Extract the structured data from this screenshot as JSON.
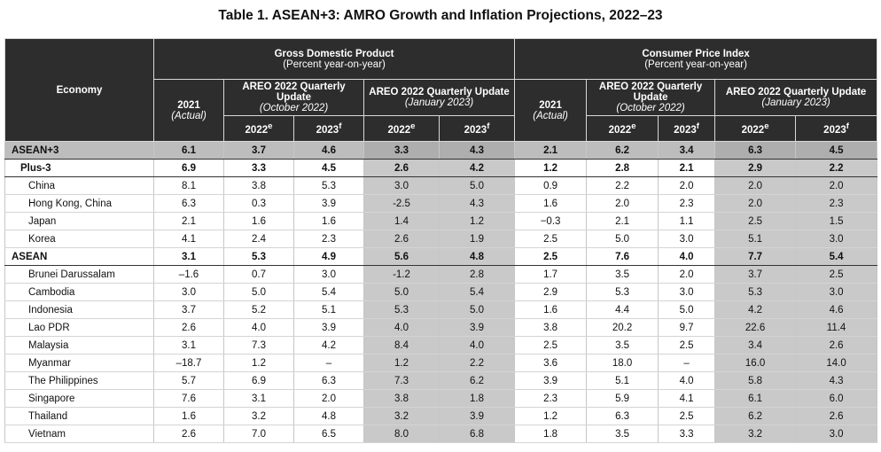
{
  "title": "Table 1. ASEAN+3: AMRO Growth and Inflation Projections, 2022–23",
  "header": {
    "economy": "Economy",
    "gdp": {
      "title": "Gross Domestic Product",
      "unit": "(Percent year-on-year)"
    },
    "cpi": {
      "title": "Consumer Price Index",
      "unit": "(Percent year-on-year)"
    },
    "actual_year": "2021",
    "actual_label": "(Actual)",
    "oct_update_title": "AREO 2022 Quarterly Update",
    "oct_update_date": "(October 2022)",
    "jan_update_title": "AREO 2022 Quarterly Update",
    "jan_update_date": "(January 2023)",
    "y2022": "2022",
    "y2022_sup": "e",
    "y2023": "2023",
    "y2023_sup": "f"
  },
  "rows": [
    {
      "economy": "ASEAN+3",
      "gdp_2021": "6.1",
      "gdp_oct_2022": "3.7",
      "gdp_oct_2023": "4.6",
      "gdp_jan_2022": "3.3",
      "gdp_jan_2023": "4.3",
      "cpi_2021": "2.1",
      "cpi_oct_2022": "6.2",
      "cpi_oct_2023": "3.4",
      "cpi_jan_2022": "6.3",
      "cpi_jan_2023": "4.5"
    },
    {
      "economy": "Plus-3",
      "gdp_2021": "6.9",
      "gdp_oct_2022": "3.3",
      "gdp_oct_2023": "4.5",
      "gdp_jan_2022": "2.6",
      "gdp_jan_2023": "4.2",
      "cpi_2021": "1.2",
      "cpi_oct_2022": "2.8",
      "cpi_oct_2023": "2.1",
      "cpi_jan_2022": "2.9",
      "cpi_jan_2023": "2.2"
    },
    {
      "economy": "China",
      "gdp_2021": "8.1",
      "gdp_oct_2022": "3.8",
      "gdp_oct_2023": "5.3",
      "gdp_jan_2022": "3.0",
      "gdp_jan_2023": "5.0",
      "cpi_2021": "0.9",
      "cpi_oct_2022": "2.2",
      "cpi_oct_2023": "2.0",
      "cpi_jan_2022": "2.0",
      "cpi_jan_2023": "2.0"
    },
    {
      "economy": "Hong Kong, China",
      "gdp_2021": "6.3",
      "gdp_oct_2022": "0.3",
      "gdp_oct_2023": "3.9",
      "gdp_jan_2022": "-2.5",
      "gdp_jan_2023": "4.3",
      "cpi_2021": "1.6",
      "cpi_oct_2022": "2.0",
      "cpi_oct_2023": "2.3",
      "cpi_jan_2022": "2.0",
      "cpi_jan_2023": "2.3"
    },
    {
      "economy": "Japan",
      "gdp_2021": "2.1",
      "gdp_oct_2022": "1.6",
      "gdp_oct_2023": "1.6",
      "gdp_jan_2022": "1.4",
      "gdp_jan_2023": "1.2",
      "cpi_2021": "−0.3",
      "cpi_oct_2022": "2.1",
      "cpi_oct_2023": "1.1",
      "cpi_jan_2022": "2.5",
      "cpi_jan_2023": "1.5"
    },
    {
      "economy": "Korea",
      "gdp_2021": "4.1",
      "gdp_oct_2022": "2.4",
      "gdp_oct_2023": "2.3",
      "gdp_jan_2022": "2.6",
      "gdp_jan_2023": "1.9",
      "cpi_2021": "2.5",
      "cpi_oct_2022": "5.0",
      "cpi_oct_2023": "3.0",
      "cpi_jan_2022": "5.1",
      "cpi_jan_2023": "3.0"
    },
    {
      "economy": "ASEAN",
      "gdp_2021": "3.1",
      "gdp_oct_2022": "5.3",
      "gdp_oct_2023": "4.9",
      "gdp_jan_2022": "5.6",
      "gdp_jan_2023": "4.8",
      "cpi_2021": "2.5",
      "cpi_oct_2022": "7.6",
      "cpi_oct_2023": "4.0",
      "cpi_jan_2022": "7.7",
      "cpi_jan_2023": "5.4"
    },
    {
      "economy": "Brunei Darussalam",
      "gdp_2021": "–1.6",
      "gdp_oct_2022": "0.7",
      "gdp_oct_2023": "3.0",
      "gdp_jan_2022": "-1.2",
      "gdp_jan_2023": "2.8",
      "cpi_2021": "1.7",
      "cpi_oct_2022": "3.5",
      "cpi_oct_2023": "2.0",
      "cpi_jan_2022": "3.7",
      "cpi_jan_2023": "2.5"
    },
    {
      "economy": "Cambodia",
      "gdp_2021": "3.0",
      "gdp_oct_2022": "5.0",
      "gdp_oct_2023": "5.4",
      "gdp_jan_2022": "5.0",
      "gdp_jan_2023": "5.4",
      "cpi_2021": "2.9",
      "cpi_oct_2022": "5.3",
      "cpi_oct_2023": "3.0",
      "cpi_jan_2022": "5.3",
      "cpi_jan_2023": "3.0"
    },
    {
      "economy": "Indonesia",
      "gdp_2021": "3.7",
      "gdp_oct_2022": "5.2",
      "gdp_oct_2023": "5.1",
      "gdp_jan_2022": "5.3",
      "gdp_jan_2023": "5.0",
      "cpi_2021": "1.6",
      "cpi_oct_2022": "4.4",
      "cpi_oct_2023": "5.0",
      "cpi_jan_2022": "4.2",
      "cpi_jan_2023": "4.6"
    },
    {
      "economy": "Lao PDR",
      "gdp_2021": "2.6",
      "gdp_oct_2022": "4.0",
      "gdp_oct_2023": "3.9",
      "gdp_jan_2022": "4.0",
      "gdp_jan_2023": "3.9",
      "cpi_2021": "3.8",
      "cpi_oct_2022": "20.2",
      "cpi_oct_2023": "9.7",
      "cpi_jan_2022": "22.6",
      "cpi_jan_2023": "11.4"
    },
    {
      "economy": "Malaysia",
      "gdp_2021": "3.1",
      "gdp_oct_2022": "7.3",
      "gdp_oct_2023": "4.2",
      "gdp_jan_2022": "8.4",
      "gdp_jan_2023": "4.0",
      "cpi_2021": "2.5",
      "cpi_oct_2022": "3.5",
      "cpi_oct_2023": "2.5",
      "cpi_jan_2022": "3.4",
      "cpi_jan_2023": "2.6"
    },
    {
      "economy": "Myanmar",
      "gdp_2021": "–18.7",
      "gdp_oct_2022": "1.2",
      "gdp_oct_2023": "–",
      "gdp_jan_2022": "1.2",
      "gdp_jan_2023": "2.2",
      "cpi_2021": "3.6",
      "cpi_oct_2022": "18.0",
      "cpi_oct_2023": "–",
      "cpi_jan_2022": "16.0",
      "cpi_jan_2023": "14.0"
    },
    {
      "economy": "The Philippines",
      "gdp_2021": "5.7",
      "gdp_oct_2022": "6.9",
      "gdp_oct_2023": "6.3",
      "gdp_jan_2022": "7.3",
      "gdp_jan_2023": "6.2",
      "cpi_2021": "3.9",
      "cpi_oct_2022": "5.1",
      "cpi_oct_2023": "4.0",
      "cpi_jan_2022": "5.8",
      "cpi_jan_2023": "4.3"
    },
    {
      "economy": "Singapore",
      "gdp_2021": "7.6",
      "gdp_oct_2022": "3.1",
      "gdp_oct_2023": "2.0",
      "gdp_jan_2022": "3.8",
      "gdp_jan_2023": "1.8",
      "cpi_2021": "2.3",
      "cpi_oct_2022": "5.9",
      "cpi_oct_2023": "4.1",
      "cpi_jan_2022": "6.1",
      "cpi_jan_2023": "6.0"
    },
    {
      "economy": "Thailand",
      "gdp_2021": "1.6",
      "gdp_oct_2022": "3.2",
      "gdp_oct_2023": "4.8",
      "gdp_jan_2022": "3.2",
      "gdp_jan_2023": "3.9",
      "cpi_2021": "1.2",
      "cpi_oct_2022": "6.3",
      "cpi_oct_2023": "2.5",
      "cpi_jan_2022": "6.2",
      "cpi_jan_2023": "2.6"
    },
    {
      "economy": "Vietnam",
      "gdp_2021": "2.6",
      "gdp_oct_2022": "7.0",
      "gdp_oct_2023": "6.5",
      "gdp_jan_2022": "8.0",
      "gdp_jan_2023": "6.8",
      "cpi_2021": "1.8",
      "cpi_oct_2022": "3.5",
      "cpi_oct_2023": "3.3",
      "cpi_jan_2022": "3.2",
      "cpi_jan_2023": "3.0"
    }
  ]
}
